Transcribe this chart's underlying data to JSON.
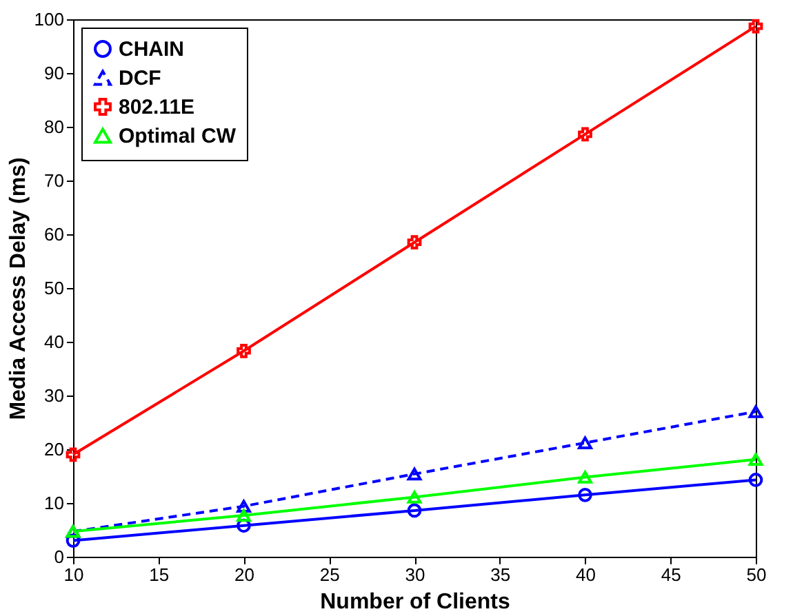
{
  "chart_data": {
    "type": "line",
    "xlabel": "Number of Clients",
    "ylabel": "Media Access Delay (ms)",
    "x": [
      10,
      20,
      30,
      40,
      50
    ],
    "series": [
      {
        "name": "CHAIN",
        "color": "#0000ff",
        "marker": "circle",
        "line_style": "solid",
        "values": [
          3.0,
          5.8,
          8.6,
          11.5,
          14.3
        ]
      },
      {
        "name": "DCF",
        "color": "#0000ff",
        "marker": "triangle",
        "line_style": "dashed",
        "values": [
          4.7,
          9.4,
          15.4,
          21.2,
          27.0
        ]
      },
      {
        "name": "802.11E",
        "color": "#ff0000",
        "marker": "cross",
        "line_style": "solid",
        "values": [
          19.0,
          38.3,
          58.5,
          78.6,
          98.7
        ]
      },
      {
        "name": "Optimal CW",
        "color": "#00ff00",
        "marker": "triangle",
        "line_style": "solid",
        "values": [
          4.7,
          7.7,
          11.1,
          14.8,
          18.1
        ]
      }
    ],
    "xlim": [
      10,
      50
    ],
    "xticks": [
      10,
      15,
      20,
      25,
      30,
      35,
      40,
      45,
      50
    ],
    "ylim": [
      0,
      100
    ],
    "yticks": [
      0,
      10,
      20,
      30,
      40,
      50,
      60,
      70,
      80,
      90,
      100
    ],
    "grid": false,
    "legend": "top left"
  }
}
